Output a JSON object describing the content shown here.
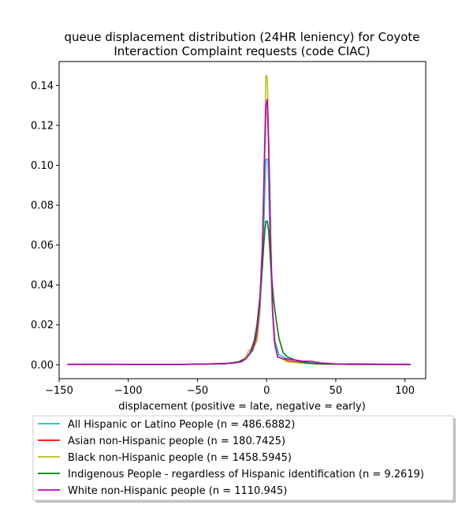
{
  "chart_data": {
    "type": "line",
    "title_line1": "queue displacement distribution (24HR leniency) for Coyote",
    "title_line2": "Interaction Complaint  requests (code CIAC)",
    "xlabel": "displacement (positive = late, negative = early)",
    "ylabel": "",
    "xlim": [
      -150,
      115
    ],
    "ylim": [
      -0.007,
      0.152
    ],
    "x_ticks": [
      -150,
      -100,
      -50,
      0,
      50,
      100
    ],
    "x_tick_labels": [
      "−150",
      "−100",
      "−50",
      "0",
      "50",
      "100"
    ],
    "y_ticks": [
      0.0,
      0.02,
      0.04,
      0.06,
      0.08,
      0.1,
      0.12,
      0.14
    ],
    "y_tick_labels": [
      "0.00",
      "0.02",
      "0.04",
      "0.06",
      "0.08",
      "0.10",
      "0.12",
      "0.14"
    ],
    "grid": false,
    "legend_placement": "below-plot",
    "series": [
      {
        "name": "All Hispanic or Latino People (n = 486.6882)",
        "color": "#17becf",
        "points": [
          [
            -144,
            0.0003
          ],
          [
            -100,
            0.0002
          ],
          [
            -60,
            0.0002
          ],
          [
            -30,
            0.0005
          ],
          [
            -20,
            0.0012
          ],
          [
            -15,
            0.003
          ],
          [
            -10,
            0.007
          ],
          [
            -7,
            0.014
          ],
          [
            -5,
            0.025
          ],
          [
            -3,
            0.05
          ],
          [
            -2,
            0.07
          ],
          [
            -1,
            0.096
          ],
          [
            -0.5,
            0.103
          ],
          [
            1,
            0.103
          ],
          [
            1.5,
            0.09
          ],
          [
            2.5,
            0.06
          ],
          [
            4,
            0.03
          ],
          [
            6,
            0.012
          ],
          [
            9,
            0.005
          ],
          [
            15,
            0.003
          ],
          [
            25,
            0.0015
          ],
          [
            40,
            0.0005
          ],
          [
            60,
            0.0003
          ],
          [
            104,
            0.0002
          ]
        ]
      },
      {
        "name": "Asian non-Hispanic people (n = 180.7425)",
        "color": "#ff0000",
        "points": [
          [
            -144,
            0.0002
          ],
          [
            -100,
            0.0002
          ],
          [
            -60,
            0.0002
          ],
          [
            -30,
            0.0005
          ],
          [
            -20,
            0.0015
          ],
          [
            -14,
            0.004
          ],
          [
            -10,
            0.008
          ],
          [
            -7,
            0.015
          ],
          [
            -5,
            0.03
          ],
          [
            -3,
            0.06
          ],
          [
            -1.5,
            0.105
          ],
          [
            -0.5,
            0.13
          ],
          [
            0.5,
            0.133
          ],
          [
            1.5,
            0.11
          ],
          [
            3,
            0.06
          ],
          [
            4,
            0.03
          ],
          [
            5.5,
            0.012
          ],
          [
            8,
            0.004
          ],
          [
            15,
            0.002
          ],
          [
            25,
            0.001
          ],
          [
            40,
            0.0004
          ],
          [
            60,
            0.0002
          ],
          [
            104,
            0.0001
          ]
        ]
      },
      {
        "name": "Black non-Hispanic people (n = 1458.5945)",
        "color": "#bcbd22",
        "points": [
          [
            -144,
            0.0002
          ],
          [
            -100,
            0.0002
          ],
          [
            -60,
            0.0002
          ],
          [
            -40,
            0.0003
          ],
          [
            -25,
            0.0008
          ],
          [
            -18,
            0.002
          ],
          [
            -15,
            0.004
          ],
          [
            -13,
            0.007
          ],
          [
            -11,
            0.008
          ],
          [
            -9,
            0.009
          ],
          [
            -7,
            0.012
          ],
          [
            -5,
            0.025
          ],
          [
            -3,
            0.06
          ],
          [
            -1.5,
            0.11
          ],
          [
            -0.5,
            0.145
          ],
          [
            0.5,
            0.144
          ],
          [
            1.5,
            0.115
          ],
          [
            3,
            0.06
          ],
          [
            4,
            0.03
          ],
          [
            5.5,
            0.012
          ],
          [
            8,
            0.004
          ],
          [
            15,
            0.0015
          ],
          [
            25,
            0.0008
          ],
          [
            40,
            0.0004
          ],
          [
            60,
            0.0002
          ],
          [
            104,
            0.0001
          ]
        ]
      },
      {
        "name": "Indigenous People - regardless of Hispanic identification (n = 9.2619)",
        "color": "#008000",
        "points": [
          [
            -144,
            0.0002
          ],
          [
            -100,
            0.0002
          ],
          [
            -60,
            0.0002
          ],
          [
            -30,
            0.0005
          ],
          [
            -20,
            0.0015
          ],
          [
            -15,
            0.003
          ],
          [
            -12,
            0.006
          ],
          [
            -9,
            0.012
          ],
          [
            -7,
            0.02
          ],
          [
            -5,
            0.033
          ],
          [
            -3,
            0.05
          ],
          [
            -1.5,
            0.066
          ],
          [
            -0.5,
            0.072
          ],
          [
            0.5,
            0.072
          ],
          [
            1.5,
            0.067
          ],
          [
            3,
            0.05
          ],
          [
            5,
            0.033
          ],
          [
            7,
            0.022
          ],
          [
            9,
            0.013
          ],
          [
            12,
            0.006
          ],
          [
            15,
            0.004
          ],
          [
            20,
            0.0025
          ],
          [
            25,
            0.0015
          ],
          [
            30,
            0.0008
          ],
          [
            40,
            0.0004
          ],
          [
            60,
            0.0002
          ],
          [
            104,
            0.0001
          ]
        ]
      },
      {
        "name": "White non-Hispanic people (n = 1110.945)",
        "color": "#bf00bf",
        "points": [
          [
            -144,
            0.0002
          ],
          [
            -120,
            0.0003
          ],
          [
            -100,
            0.0002
          ],
          [
            -60,
            0.0002
          ],
          [
            -45,
            0.0003
          ],
          [
            -35,
            0.0006
          ],
          [
            -25,
            0.0008
          ],
          [
            -18,
            0.0015
          ],
          [
            -15,
            0.003
          ],
          [
            -12,
            0.006
          ],
          [
            -9,
            0.01
          ],
          [
            -7,
            0.016
          ],
          [
            -5,
            0.03
          ],
          [
            -3,
            0.06
          ],
          [
            -1.5,
            0.105
          ],
          [
            -0.5,
            0.13
          ],
          [
            0.5,
            0.133
          ],
          [
            1.5,
            0.11
          ],
          [
            3,
            0.06
          ],
          [
            4.5,
            0.025
          ],
          [
            6,
            0.01
          ],
          [
            8,
            0.004
          ],
          [
            12,
            0.003
          ],
          [
            20,
            0.0025
          ],
          [
            26,
            0.0018
          ],
          [
            32,
            0.0018
          ],
          [
            38,
            0.001
          ],
          [
            50,
            0.0004
          ],
          [
            70,
            0.0004
          ],
          [
            85,
            0.0003
          ],
          [
            104,
            0.0002
          ]
        ]
      }
    ]
  }
}
